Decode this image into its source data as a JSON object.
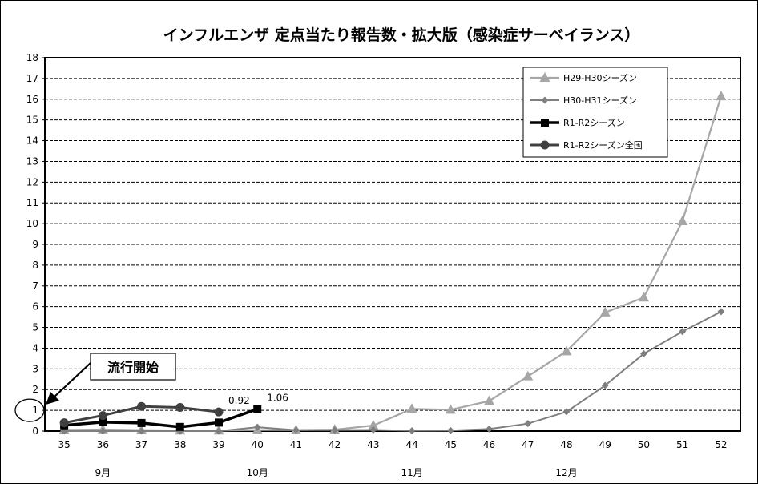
{
  "chart_data": {
    "type": "line",
    "title": "インフルエンザ 定点当たり報告数・拡大版（感染症サーベイランス）",
    "xlabel": "",
    "ylabel": "",
    "categories": [
      "35",
      "36",
      "37",
      "38",
      "39",
      "40",
      "41",
      "42",
      "43",
      "44",
      "45",
      "46",
      "47",
      "48",
      "49",
      "50",
      "51",
      "52"
    ],
    "ylim": [
      0,
      18
    ],
    "yticks": [
      0,
      1,
      2,
      3,
      4,
      5,
      6,
      7,
      8,
      9,
      10,
      11,
      12,
      13,
      14,
      15,
      16,
      17,
      18
    ],
    "grid": true,
    "legend_position": "top-right",
    "months": [
      {
        "label": "9月",
        "at": "36"
      },
      {
        "label": "10月",
        "at": "40"
      },
      {
        "label": "11月",
        "at": "44"
      },
      {
        "label": "12月",
        "at": "48"
      }
    ],
    "series": [
      {
        "name": "H29-H30シーズン",
        "color": "#a6a6a6",
        "marker": "triangle",
        "values": [
          0.06,
          0.08,
          0.05,
          0.03,
          0.03,
          0.05,
          0.05,
          0.07,
          0.27,
          1.07,
          1.03,
          1.45,
          2.64,
          3.85,
          5.72,
          6.44,
          10.12,
          16.14
        ]
      },
      {
        "name": "H30-H31シーズン",
        "color": "#7f7f7f",
        "marker": "diamond",
        "values": [
          0.0,
          0.0,
          0.0,
          0.0,
          0.0,
          0.19,
          0.05,
          0.05,
          0.06,
          0.02,
          0.03,
          0.1,
          0.36,
          0.93,
          2.2,
          3.73,
          4.8,
          5.76
        ]
      },
      {
        "name": "R1-R2シーズン",
        "color": "#000000",
        "marker": "square",
        "values": [
          0.28,
          0.43,
          0.39,
          0.2,
          0.41,
          1.06,
          null,
          null,
          null,
          null,
          null,
          null,
          null,
          null,
          null,
          null,
          null,
          null
        ]
      },
      {
        "name": "R1-R2シーズン全国",
        "color": "#404040",
        "marker": "circle",
        "values": [
          0.4,
          0.75,
          1.19,
          1.14,
          0.92,
          null,
          null,
          null,
          null,
          null,
          null,
          null,
          null,
          null,
          null,
          null,
          null,
          null
        ]
      }
    ],
    "annotations": [
      {
        "text": "0.92",
        "series": "R1-R2シーズン全国",
        "category": "39"
      },
      {
        "text": "1.06",
        "series": "R1-R2シーズン",
        "category": "40"
      },
      {
        "text": "流行開始",
        "type": "callout",
        "refers_to_y": 1
      },
      {
        "text": "1",
        "type": "circled-threshold",
        "y": 1
      }
    ]
  }
}
